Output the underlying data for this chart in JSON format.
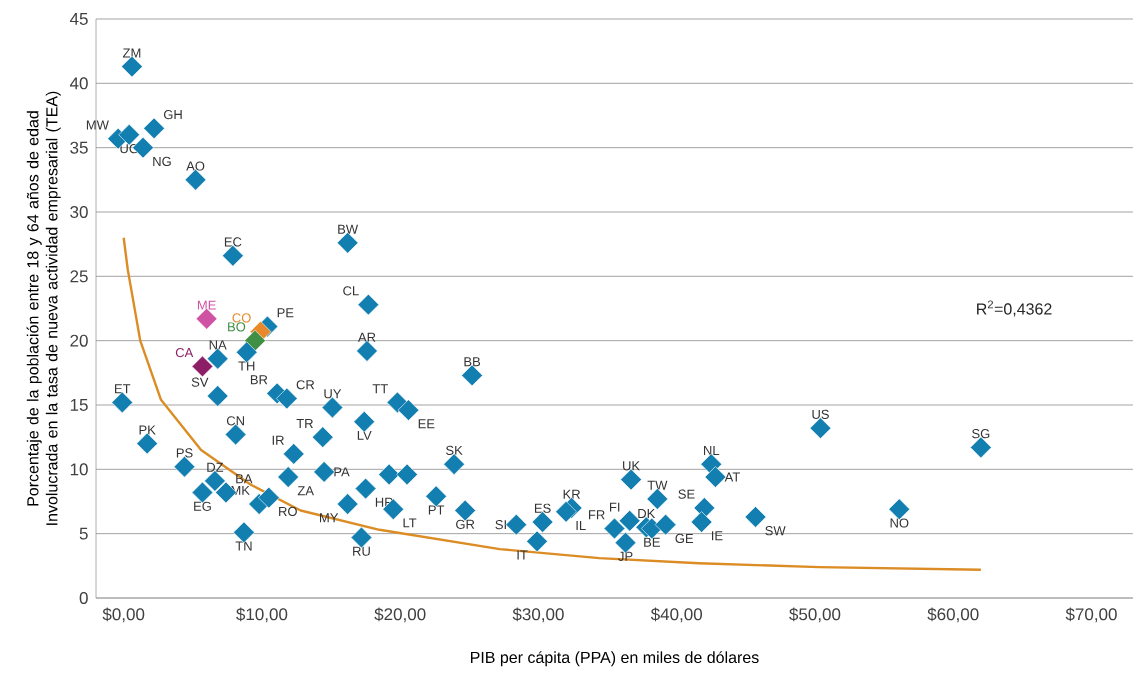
{
  "chart_data": {
    "type": "scatter",
    "xlabel": "PIB per cápita (PPA) en miles de dólares",
    "ylabel": "Porcentaje de la población entre 18 y 64 años de edad Involucrada en la tasa de nueva actividad empresarial (TEA)",
    "xlim": [
      -2,
      73
    ],
    "ylim": [
      0,
      45
    ],
    "xticks": [
      {
        "value": 0,
        "label": "$0,00"
      },
      {
        "value": 10,
        "label": "$10,00"
      },
      {
        "value": 20,
        "label": "$20,00"
      },
      {
        "value": 30,
        "label": "$30,00"
      },
      {
        "value": 40,
        "label": "$40,00"
      },
      {
        "value": 50,
        "label": "$50,00"
      },
      {
        "value": 60,
        "label": "$60,00"
      },
      {
        "value": 70,
        "label": "$70,00"
      }
    ],
    "yticks": [
      0,
      5,
      10,
      15,
      20,
      25,
      30,
      35,
      40,
      45
    ],
    "grid": "y",
    "series": [
      {
        "marker": "diamond",
        "x": [
          0.6,
          -0.4,
          0.4,
          1.4,
          2.2,
          5.2,
          7.9,
          16.2,
          17.7,
          17.6,
          25.2,
          6.0,
          10.4,
          9.9,
          9.5,
          8.9,
          5.7,
          6.8,
          6.8,
          -0.1,
          1.7,
          8.1,
          11.1,
          11.8,
          15.1,
          14.4,
          12.3,
          17.4,
          19.8,
          20.6,
          4.4,
          6.6,
          7.4,
          5.7,
          9.8,
          10.5,
          8.7,
          11.9,
          14.5,
          16.2,
          17.5,
          17.2,
          19.5,
          19.2,
          20.5,
          22.6,
          23.9,
          24.7,
          28.4,
          30.3,
          29.9,
          32.4,
          32.0,
          35.5,
          36.6,
          36.3,
          36.7,
          38.6,
          37.8,
          38.2,
          39.2,
          42.5,
          42.8,
          42.0,
          41.8,
          45.7,
          50.4,
          62.0,
          56.1
        ],
        "values": [
          41.3,
          35.7,
          36.0,
          35.0,
          36.5,
          32.5,
          26.6,
          27.6,
          22.8,
          19.2,
          17.3,
          21.7,
          21.1,
          20.7,
          20.0,
          19.1,
          18.0,
          18.6,
          15.7,
          15.2,
          12.0,
          12.7,
          15.9,
          15.5,
          14.8,
          12.5,
          11.2,
          13.7,
          15.2,
          14.6,
          10.2,
          9.1,
          8.2,
          8.2,
          7.3,
          7.8,
          5.1,
          9.4,
          9.8,
          7.3,
          8.5,
          4.7,
          6.9,
          9.6,
          9.6,
          7.9,
          10.4,
          6.8,
          5.7,
          5.9,
          4.4,
          7.0,
          6.7,
          5.4,
          6.0,
          4.3,
          9.2,
          7.7,
          5.5,
          5.4,
          5.7,
          10.4,
          9.4,
          7.0,
          5.9,
          6.3,
          13.2,
          11.7,
          6.9
        ],
        "colors": [
          "#127fb0",
          "#127fb0",
          "#127fb0",
          "#127fb0",
          "#127fb0",
          "#127fb0",
          "#127fb0",
          "#127fb0",
          "#127fb0",
          "#127fb0",
          "#127fb0",
          "#cf52a3",
          "#127fb0",
          "#e88a2c",
          "#3f8f44",
          "#127fb0",
          "#8c1f66",
          "#127fb0",
          "#127fb0",
          "#127fb0",
          "#127fb0",
          "#127fb0",
          "#127fb0",
          "#127fb0",
          "#127fb0",
          "#127fb0",
          "#127fb0",
          "#127fb0",
          "#127fb0",
          "#127fb0",
          "#127fb0",
          "#127fb0",
          "#127fb0",
          "#127fb0",
          "#127fb0",
          "#127fb0",
          "#127fb0",
          "#127fb0",
          "#127fb0",
          "#127fb0",
          "#127fb0",
          "#127fb0",
          "#127fb0",
          "#127fb0",
          "#127fb0",
          "#127fb0",
          "#127fb0",
          "#127fb0",
          "#127fb0",
          "#127fb0",
          "#127fb0",
          "#127fb0",
          "#127fb0",
          "#127fb0",
          "#127fb0",
          "#127fb0",
          "#127fb0",
          "#127fb0",
          "#127fb0",
          "#127fb0",
          "#127fb0",
          "#127fb0",
          "#127fb0",
          "#127fb0",
          "#127fb0",
          "#127fb0",
          "#127fb0",
          "#127fb0",
          "#127fb0"
        ]
      },
      {
        "type": "line",
        "marker": "none",
        "color": "#dc8c24",
        "x": [
          0,
          0.3,
          1.2,
          2.7,
          5.6,
          9.2,
          12.8,
          18.5,
          27.2,
          34.4,
          41.6,
          50.3,
          62.0
        ],
        "values": [
          28.0,
          25.5,
          20.0,
          15.4,
          11.5,
          8.8,
          6.8,
          5.3,
          3.8,
          3.1,
          2.7,
          2.4,
          2.2
        ]
      }
    ],
    "annotations": [
      {
        "text": "ZM",
        "x": 0.6,
        "y": 41.3
      },
      {
        "text": "MW",
        "x": -0.4,
        "y": 35.7
      },
      {
        "text": "UG",
        "x": 0.4,
        "y": 36.0
      },
      {
        "text": "NG",
        "x": 1.4,
        "y": 35.0
      },
      {
        "text": "GH",
        "x": 2.2,
        "y": 36.5
      },
      {
        "text": "AO",
        "x": 5.2,
        "y": 32.5
      },
      {
        "text": "EC",
        "x": 7.9,
        "y": 26.6
      },
      {
        "text": "BW",
        "x": 16.2,
        "y": 27.6
      },
      {
        "text": "CL",
        "x": 17.7,
        "y": 22.8
      },
      {
        "text": "AR",
        "x": 17.6,
        "y": 19.2
      },
      {
        "text": "BB",
        "x": 25.2,
        "y": 17.3
      },
      {
        "text": "ME",
        "x": 6.0,
        "y": 21.7
      },
      {
        "text": "PE",
        "x": 10.4,
        "y": 21.1
      },
      {
        "text": "CO",
        "x": 9.9,
        "y": 20.7
      },
      {
        "text": "BO",
        "x": 9.5,
        "y": 20.0
      },
      {
        "text": "TH",
        "x": 8.9,
        "y": 19.1
      },
      {
        "text": "CA",
        "x": 5.7,
        "y": 18.0
      },
      {
        "text": "NA",
        "x": 6.8,
        "y": 18.6
      },
      {
        "text": "SV",
        "x": 6.8,
        "y": 15.7
      },
      {
        "text": "ET",
        "x": -0.1,
        "y": 15.2
      },
      {
        "text": "PK",
        "x": 1.7,
        "y": 12.0
      },
      {
        "text": "CN",
        "x": 8.1,
        "y": 12.7
      },
      {
        "text": "BR",
        "x": 11.1,
        "y": 15.9
      },
      {
        "text": "CR",
        "x": 11.8,
        "y": 15.5
      },
      {
        "text": "UY",
        "x": 15.1,
        "y": 14.8
      },
      {
        "text": "TR",
        "x": 14.4,
        "y": 12.5
      },
      {
        "text": "IR",
        "x": 12.3,
        "y": 11.2
      },
      {
        "text": "LV",
        "x": 17.4,
        "y": 13.7
      },
      {
        "text": "TT",
        "x": 19.8,
        "y": 15.2
      },
      {
        "text": "EE",
        "x": 20.6,
        "y": 14.6
      },
      {
        "text": "PS",
        "x": 4.4,
        "y": 10.2
      },
      {
        "text": "DZ",
        "x": 6.6,
        "y": 9.1
      },
      {
        "text": "BA",
        "x": 7.4,
        "y": 8.2
      },
      {
        "text": "EG",
        "x": 5.7,
        "y": 8.2
      },
      {
        "text": "MK",
        "x": 9.8,
        "y": 7.3
      },
      {
        "text": "RO",
        "x": 10.5,
        "y": 7.8
      },
      {
        "text": "TN",
        "x": 8.7,
        "y": 5.1
      },
      {
        "text": "ZA",
        "x": 11.9,
        "y": 9.4
      },
      {
        "text": "PA",
        "x": 14.5,
        "y": 9.8
      },
      {
        "text": "MY",
        "x": 16.2,
        "y": 7.3
      },
      {
        "text": "HR",
        "x": 17.5,
        "y": 8.5
      },
      {
        "text": "RU",
        "x": 17.2,
        "y": 4.7
      },
      {
        "text": "LT",
        "x": 19.5,
        "y": 6.9
      },
      {
        "text": "PT",
        "x": 22.6,
        "y": 7.9
      },
      {
        "text": "SK",
        "x": 23.9,
        "y": 10.4
      },
      {
        "text": "GR",
        "x": 24.7,
        "y": 6.8
      },
      {
        "text": "SI",
        "x": 28.4,
        "y": 5.7
      },
      {
        "text": "ES",
        "x": 30.3,
        "y": 5.9
      },
      {
        "text": "IT",
        "x": 29.9,
        "y": 4.4
      },
      {
        "text": "KR",
        "x": 32.4,
        "y": 7.0
      },
      {
        "text": "IL",
        "x": 32.0,
        "y": 6.7
      },
      {
        "text": "FR",
        "x": 35.5,
        "y": 5.4
      },
      {
        "text": "FI",
        "x": 36.6,
        "y": 6.0
      },
      {
        "text": "JP",
        "x": 36.3,
        "y": 4.3
      },
      {
        "text": "UK",
        "x": 36.7,
        "y": 9.2
      },
      {
        "text": "TW",
        "x": 38.6,
        "y": 7.7
      },
      {
        "text": "DK",
        "x": 37.8,
        "y": 5.5
      },
      {
        "text": "BE",
        "x": 38.2,
        "y": 5.4
      },
      {
        "text": "GE",
        "x": 39.2,
        "y": 5.7
      },
      {
        "text": "NL",
        "x": 42.5,
        "y": 10.4
      },
      {
        "text": "AT",
        "x": 42.8,
        "y": 9.4
      },
      {
        "text": "SE",
        "x": 42.0,
        "y": 7.0
      },
      {
        "text": "IE",
        "x": 41.8,
        "y": 5.9
      },
      {
        "text": "SW",
        "x": 45.7,
        "y": 6.3
      },
      {
        "text": "US",
        "x": 50.4,
        "y": 13.2
      },
      {
        "text": "SG",
        "x": 62.0,
        "y": 11.7
      },
      {
        "text": "NO",
        "x": 56.1,
        "y": 6.9
      },
      "R$^{2}$=0,4362"
    ]
  }
}
